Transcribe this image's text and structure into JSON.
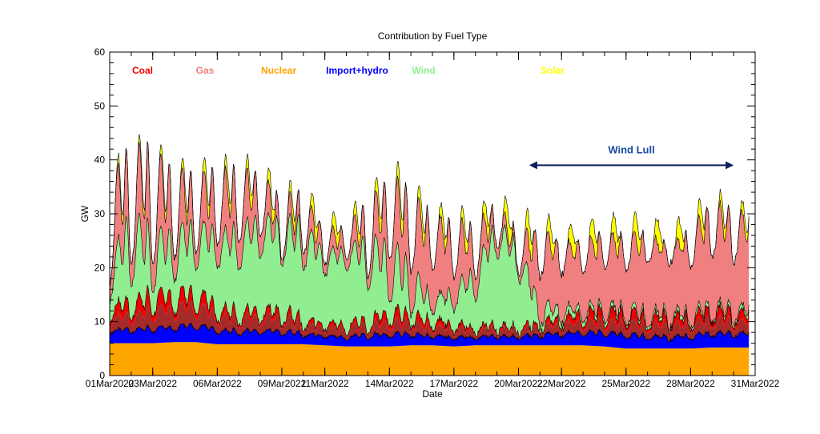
{
  "chart_data": {
    "type": "area",
    "title": "Contribution by Fuel Type",
    "xlabel": "Date",
    "ylabel": "GW",
    "ylim": [
      0,
      60
    ],
    "yticks": [
      0,
      10,
      20,
      30,
      40,
      50,
      60
    ],
    "xlim": [
      "01Mar2022",
      "31Mar2022"
    ],
    "xticks": [
      "01Mar2022",
      "03Mar2022",
      "06Mar2022",
      "09Mar2022",
      "11Mar2022",
      "14Mar2022",
      "17Mar2022",
      "20Mar2022",
      "22Mar2022",
      "25Mar2022",
      "28Mar2022",
      "31Mar2022"
    ],
    "legend_placement": "top",
    "stack_order": [
      "Nuclear",
      "Import+hydro",
      "Coal",
      "Wind",
      "Gas",
      "Solar"
    ],
    "series": [
      {
        "name": "Coal",
        "color": "#ee0000",
        "legend_color": "#ee0000"
      },
      {
        "name": "Gas",
        "color": "#f08080",
        "legend_color": "#f08080"
      },
      {
        "name": "Nuclear",
        "color": "#ffa500",
        "legend_color": "#ffa500"
      },
      {
        "name": "Import+hydro",
        "color": "#0000ff",
        "legend_color": "#0000ff"
      },
      {
        "name": "Wind",
        "color": "#90ee90",
        "legend_color": "#90ee90"
      },
      {
        "name": "Solar",
        "color": "#ffff00",
        "legend_color": "#ffff00"
      }
    ],
    "extra_band_color": "#a52a2a",
    "daily_estimates": {
      "days": [
        1,
        2,
        3,
        4,
        5,
        6,
        7,
        8,
        9,
        10,
        11,
        12,
        13,
        14,
        15,
        16,
        17,
        18,
        19,
        20,
        21,
        22,
        23,
        24,
        25,
        26,
        27,
        28,
        29,
        30
      ],
      "nuclear": [
        6,
        6,
        6,
        6.2,
        6.2,
        5.8,
        5.8,
        5.8,
        5.8,
        5.8,
        5.6,
        5.4,
        5.4,
        5.4,
        5.6,
        5.6,
        5.4,
        5.6,
        5.6,
        5.6,
        5.6,
        5.6,
        5.6,
        5.4,
        5.0,
        5.0,
        5.0,
        5.0,
        5.2,
        5.2
      ],
      "import_hydro": [
        2,
        2.5,
        2.5,
        2.6,
        3,
        2.4,
        2.2,
        2.4,
        2.2,
        1.8,
        1.6,
        1.7,
        1.9,
        2.1,
        1.9,
        1.6,
        1.6,
        1.4,
        1.6,
        1.5,
        1.8,
        2,
        2.2,
        2.3,
        2.4,
        2.1,
        2,
        2.1,
        2.5,
        2.4
      ],
      "brown_band": [
        2,
        2.5,
        3,
        3.2,
        3.4,
        2.4,
        2.2,
        2.4,
        2.3,
        1.6,
        1.4,
        1.7,
        1.5,
        2.2,
        1.9,
        1.6,
        1.4,
        1.1,
        1.4,
        1,
        1.2,
        1.6,
        1.7,
        1.8,
        2,
        1.9,
        2.1,
        1.8,
        2.4,
        2
      ],
      "coal": [
        1.6,
        2.2,
        2.4,
        2.2,
        2.1,
        1.4,
        1,
        1.2,
        1.1,
        0.8,
        0.6,
        0.6,
        0.8,
        1.6,
        1.2,
        1,
        0.8,
        0.5,
        0.5,
        0.5,
        0.6,
        1,
        1.4,
        1.6,
        1.6,
        1.2,
        1.4,
        1.1,
        1.6,
        1.4
      ],
      "gas_trough": [
        3,
        4,
        5,
        4,
        3,
        4,
        5,
        4,
        1,
        3,
        2,
        2,
        2,
        8,
        8,
        8,
        6,
        4,
        2,
        1,
        9,
        9,
        9,
        10,
        10,
        12,
        12,
        11,
        12,
        11
      ],
      "gas_peak": [
        16,
        13,
        16,
        12,
        9,
        12,
        11,
        8,
        4,
        5,
        4,
        4,
        7,
        12,
        14,
        16,
        13,
        8,
        3,
        2,
        14,
        12,
        12,
        13,
        13,
        14,
        11,
        15,
        19,
        18
      ],
      "wind_trough": [
        4,
        6,
        4,
        6,
        8,
        10,
        10,
        12,
        11,
        11,
        10,
        12,
        8,
        4,
        2,
        3,
        4,
        6,
        14,
        10,
        1,
        1,
        1,
        0.8,
        0.5,
        0.5,
        0.5,
        0.5,
        0.3,
        0.6
      ],
      "wind_peak": [
        9,
        18,
        12,
        12,
        13,
        14,
        16,
        18,
        17,
        19,
        14,
        14,
        16,
        14,
        10,
        4,
        7,
        12,
        20,
        16,
        4,
        2,
        1,
        1,
        1,
        1,
        1,
        1,
        1,
        1
      ],
      "solar_peak": [
        2.5,
        2,
        2.5,
        2.5,
        3,
        3.5,
        3,
        3.5,
        3,
        3,
        4,
        3,
        3,
        4,
        4,
        3,
        3.5,
        3,
        4,
        5,
        4,
        4,
        4.5,
        4.5,
        4.5,
        4.5,
        4.5,
        4.5,
        3.5,
        2.5
      ]
    },
    "annotations": [
      {
        "text": "Wind Lull",
        "color": "#1a4aa0",
        "arrow_from": "20.5Mar2022",
        "arrow_to": "30Mar2022",
        "arrow_y": 39
      }
    ]
  }
}
